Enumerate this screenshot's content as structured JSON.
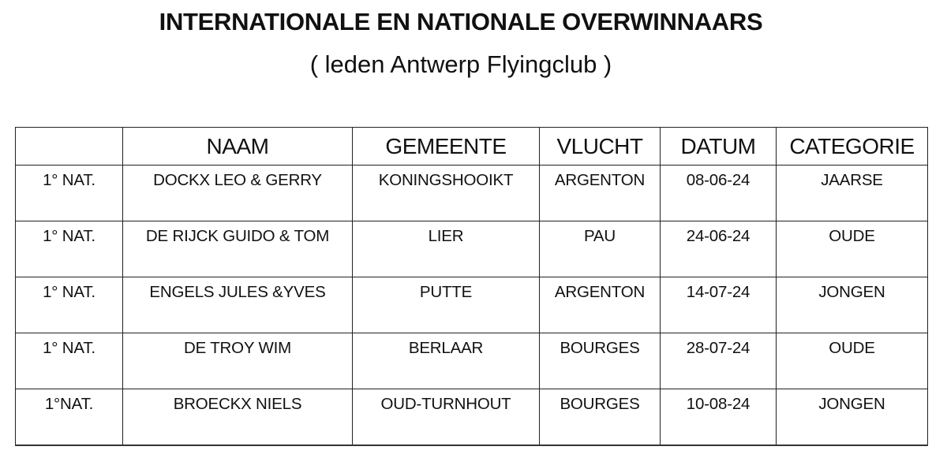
{
  "title": "INTERNATIONALE  EN NATIONALE OVERWINNAARS",
  "subtitle": "( leden Antwerp Flyingclub )",
  "table": {
    "headers": [
      "",
      "NAAM",
      "GEMEENTE",
      "VLUCHT",
      "DATUM",
      "CATEGORIE"
    ],
    "rows": [
      [
        "1° NAT.",
        "DOCKX  LEO & GERRY",
        "KONINGSHOOIKT",
        "ARGENTON",
        "08-06-24",
        "JAARSE"
      ],
      [
        "1° NAT.",
        "DE RIJCK GUIDO & TOM",
        "LIER",
        "PAU",
        "24-06-24",
        "OUDE"
      ],
      [
        "1° NAT.",
        "ENGELS JULES &YVES",
        "PUTTE",
        "ARGENTON",
        "14-07-24",
        "JONGEN"
      ],
      [
        "1° NAT.",
        "DE TROY WIM",
        "BERLAAR",
        "BOURGES",
        "28-07-24",
        "OUDE"
      ],
      [
        "1°NAT.",
        "BROECKX  NIELS",
        "OUD-TURNHOUT",
        "BOURGES",
        "10-08-24",
        "JONGEN"
      ]
    ]
  }
}
